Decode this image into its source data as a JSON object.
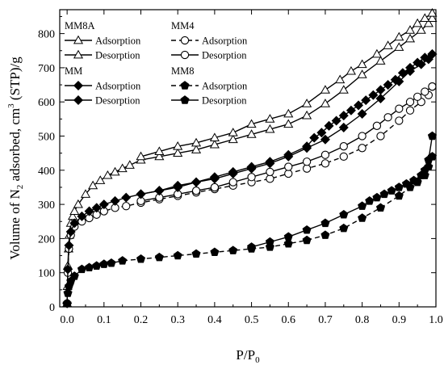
{
  "chart_data": {
    "type": "scatter",
    "xlabel": "P/P",
    "xlabel_sub": "0",
    "ylabel_pre": "Volume of N",
    "ylabel_sub": "2",
    "ylabel_mid": " adsorbed, cm",
    "ylabel_sup": "3",
    "ylabel_post": " (STP)/g",
    "xlim": [
      -0.02,
      1.0
    ],
    "ylim": [
      0,
      870
    ],
    "xticks": [
      0.0,
      0.1,
      0.2,
      0.3,
      0.4,
      0.5,
      0.6,
      0.7,
      0.8,
      0.9,
      1.0
    ],
    "xtick_labels": [
      "0.0",
      "0.1",
      "0.2",
      "0.3",
      "0.4",
      "0.5",
      "0.6",
      "0.7",
      "0.8",
      "0.9",
      "1.0"
    ],
    "yticks": [
      0,
      100,
      200,
      300,
      400,
      500,
      600,
      700,
      800
    ],
    "ytick_labels": [
      "0",
      "100",
      "200",
      "300",
      "400",
      "500",
      "600",
      "700",
      "800"
    ],
    "grid": false,
    "legend_placement": "top-left",
    "legend": {
      "groups": [
        {
          "title": "MM8A",
          "adsorption_label": "Adsorption",
          "desorption_label": "Desorption"
        },
        {
          "title": "MM4",
          "adsorption_label": "Adsorption",
          "desorption_label": "Desorption"
        },
        {
          "title": "MM",
          "adsorption_label": "Adsorption",
          "desorption_label": "Desorption"
        },
        {
          "title": "MM8",
          "adsorption_label": "Adsorption",
          "desorption_label": "Desorption"
        }
      ]
    },
    "series": [
      {
        "name": "MM8A Adsorption",
        "marker": "triangle",
        "fill": "none",
        "line": "solid",
        "x": [
          0.0,
          0.001,
          0.002,
          0.004,
          0.006,
          0.01,
          0.015,
          0.02,
          0.03,
          0.05,
          0.07,
          0.09,
          0.11,
          0.13,
          0.15,
          0.17,
          0.2,
          0.25,
          0.3,
          0.35,
          0.4,
          0.45,
          0.5,
          0.55,
          0.6,
          0.65,
          0.7,
          0.75,
          0.8,
          0.85,
          0.9,
          0.93,
          0.96,
          0.98,
          0.99
        ],
        "y": [
          10,
          60,
          120,
          170,
          210,
          245,
          265,
          280,
          300,
          330,
          355,
          370,
          385,
          395,
          405,
          415,
          430,
          440,
          450,
          460,
          475,
          490,
          505,
          520,
          535,
          560,
          595,
          635,
          680,
          720,
          760,
          785,
          810,
          830,
          845
        ]
      },
      {
        "name": "MM8A Desorption",
        "marker": "triangle",
        "fill": "none",
        "line": "solid",
        "x": [
          0.99,
          0.97,
          0.95,
          0.93,
          0.9,
          0.87,
          0.84,
          0.8,
          0.77,
          0.74,
          0.7,
          0.65,
          0.6,
          0.55,
          0.5,
          0.45,
          0.4,
          0.35,
          0.3,
          0.25,
          0.2
        ],
        "y": [
          860,
          845,
          830,
          810,
          790,
          765,
          740,
          710,
          690,
          665,
          635,
          595,
          565,
          550,
          535,
          510,
          495,
          480,
          470,
          455,
          440
        ]
      },
      {
        "name": "MM4 Adsorption",
        "marker": "circle",
        "fill": "none",
        "line": "dashed",
        "x": [
          0.0,
          0.002,
          0.005,
          0.01,
          0.02,
          0.04,
          0.06,
          0.08,
          0.1,
          0.13,
          0.16,
          0.2,
          0.25,
          0.3,
          0.35,
          0.4,
          0.45,
          0.5,
          0.55,
          0.6,
          0.65,
          0.7,
          0.75,
          0.8,
          0.85,
          0.9,
          0.93,
          0.96,
          0.98,
          0.99
        ],
        "y": [
          10,
          100,
          170,
          210,
          235,
          250,
          260,
          270,
          280,
          290,
          295,
          305,
          315,
          325,
          335,
          345,
          355,
          365,
          375,
          390,
          405,
          420,
          440,
          465,
          500,
          545,
          575,
          600,
          620,
          645
        ]
      },
      {
        "name": "MM4 Desorption",
        "marker": "circle",
        "fill": "none",
        "line": "solid",
        "x": [
          0.99,
          0.97,
          0.95,
          0.93,
          0.9,
          0.87,
          0.84,
          0.8,
          0.75,
          0.7,
          0.65,
          0.6,
          0.55,
          0.5,
          0.45,
          0.4,
          0.35,
          0.3,
          0.25,
          0.2
        ],
        "y": [
          645,
          630,
          615,
          600,
          580,
          555,
          530,
          500,
          470,
          445,
          425,
          410,
          395,
          380,
          365,
          350,
          340,
          330,
          320,
          310
        ]
      },
      {
        "name": "MM Adsorption",
        "marker": "diamond",
        "fill": "filled",
        "line": "solid",
        "x": [
          0.0,
          0.002,
          0.005,
          0.01,
          0.02,
          0.04,
          0.06,
          0.08,
          0.1,
          0.13,
          0.16,
          0.2,
          0.25,
          0.3,
          0.35,
          0.4,
          0.45,
          0.5,
          0.55,
          0.6,
          0.65,
          0.7,
          0.75,
          0.8,
          0.85,
          0.9,
          0.93,
          0.96,
          0.98,
          0.99
        ],
        "y": [
          10,
          110,
          180,
          220,
          245,
          265,
          280,
          290,
          300,
          310,
          320,
          330,
          340,
          355,
          365,
          375,
          390,
          405,
          420,
          440,
          465,
          490,
          525,
          565,
          610,
          660,
          690,
          710,
          725,
          740
        ]
      },
      {
        "name": "MM Desorption",
        "marker": "diamond",
        "fill": "filled",
        "line": "solid",
        "x": [
          0.99,
          0.97,
          0.95,
          0.93,
          0.91,
          0.89,
          0.87,
          0.85,
          0.83,
          0.81,
          0.79,
          0.77,
          0.75,
          0.73,
          0.71,
          0.69,
          0.67,
          0.65,
          0.6,
          0.55,
          0.5,
          0.45,
          0.4,
          0.35,
          0.3,
          0.25,
          0.2
        ],
        "y": [
          740,
          730,
          715,
          700,
          685,
          665,
          650,
          635,
          620,
          605,
          590,
          575,
          560,
          545,
          530,
          510,
          495,
          470,
          445,
          425,
          410,
          395,
          380,
          365,
          350,
          340,
          330
        ]
      },
      {
        "name": "MM8 Adsorption",
        "marker": "pentagon",
        "fill": "filled",
        "line": "dashed",
        "x": [
          0.0,
          0.002,
          0.005,
          0.01,
          0.02,
          0.04,
          0.06,
          0.08,
          0.1,
          0.12,
          0.15,
          0.2,
          0.25,
          0.3,
          0.35,
          0.4,
          0.45,
          0.5,
          0.55,
          0.6,
          0.65,
          0.7,
          0.75,
          0.8,
          0.85,
          0.9,
          0.93,
          0.95,
          0.97,
          0.98,
          0.99
        ],
        "y": [
          10,
          40,
          60,
          75,
          90,
          110,
          115,
          120,
          125,
          128,
          135,
          140,
          145,
          150,
          155,
          160,
          165,
          170,
          175,
          185,
          195,
          210,
          230,
          260,
          290,
          325,
          350,
          365,
          385,
          410,
          440
        ]
      },
      {
        "name": "MM8 Desorption",
        "marker": "pentagon",
        "fill": "filled",
        "line": "solid",
        "x": [
          0.99,
          0.98,
          0.97,
          0.96,
          0.94,
          0.92,
          0.9,
          0.88,
          0.86,
          0.84,
          0.82,
          0.8,
          0.75,
          0.7,
          0.65,
          0.6,
          0.55,
          0.5
        ],
        "y": [
          500,
          430,
          400,
          385,
          370,
          360,
          350,
          340,
          330,
          320,
          310,
          295,
          270,
          245,
          225,
          205,
          190,
          175
        ]
      }
    ]
  },
  "colors": {
    "axis": "#000000",
    "background": "#ffffff",
    "marker_fill": "#000000",
    "marker_open": "#ffffff"
  }
}
